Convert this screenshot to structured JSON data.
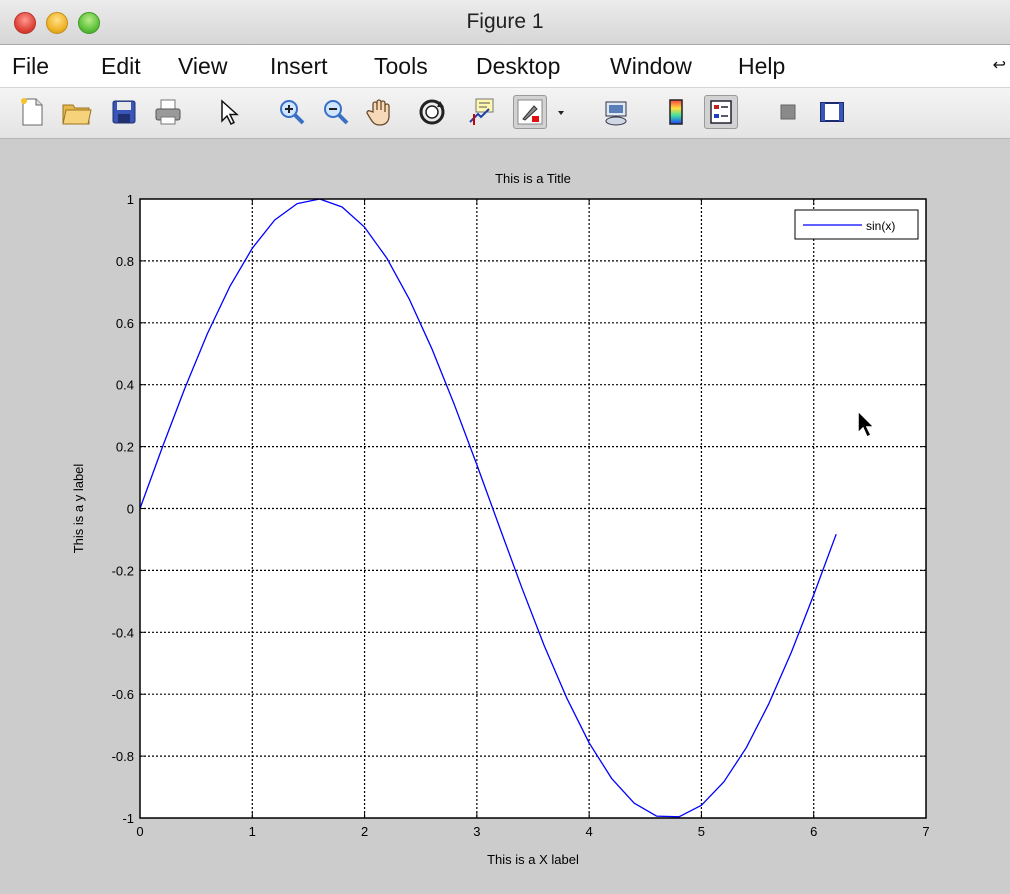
{
  "window": {
    "title": "Figure 1"
  },
  "menu": {
    "items": [
      "File",
      "Edit",
      "View",
      "Insert",
      "Tools",
      "Desktop",
      "Window",
      "Help"
    ],
    "overflow_arrow": "↩"
  },
  "toolbar": {
    "buttons": [
      "new-figure-icon",
      "open-file-icon",
      "save-icon",
      "print-icon",
      "edit-plot-pointer-icon",
      "zoom-in-icon",
      "zoom-out-icon",
      "pan-hand-icon",
      "rotate-3d-icon",
      "data-cursor-icon",
      "brush-icon",
      "brush-dropdown-icon",
      "link-plot-icon",
      "insert-colorbar-icon",
      "insert-legend-icon",
      "hide-plot-tools-icon",
      "show-plot-tools-icon"
    ]
  },
  "chart_data": {
    "type": "line",
    "title": "This is a Title",
    "xlabel": "This is a X label",
    "ylabel": "This is a y label",
    "xlim": [
      0,
      7
    ],
    "ylim": [
      -1,
      1
    ],
    "xticks": [
      "0",
      "1",
      "2",
      "3",
      "4",
      "5",
      "6",
      "7"
    ],
    "yticks": [
      "-1",
      "-0.8",
      "-0.6",
      "-0.4",
      "-0.2",
      "0",
      "0.2",
      "0.4",
      "0.6",
      "0.8",
      "1"
    ],
    "grid": true,
    "legend": {
      "position": "top-right",
      "entries": [
        "sin(x)"
      ]
    },
    "series": [
      {
        "name": "sin(x)",
        "color": "#0000ff",
        "x": [
          0,
          0.2,
          0.4,
          0.6,
          0.8,
          1.0,
          1.2,
          1.4,
          1.6,
          1.8,
          2.0,
          2.2,
          2.4,
          2.6,
          2.8,
          3.0,
          3.2,
          3.4,
          3.6,
          3.8,
          4.0,
          4.2,
          4.4,
          4.6,
          4.8,
          5.0,
          5.2,
          5.4,
          5.6,
          5.8,
          6.0,
          6.2
        ],
        "y": [
          0,
          0.199,
          0.389,
          0.565,
          0.717,
          0.841,
          0.932,
          0.985,
          1.0,
          0.974,
          0.909,
          0.808,
          0.675,
          0.516,
          0.335,
          0.141,
          -0.058,
          -0.256,
          -0.443,
          -0.612,
          -0.757,
          -0.872,
          -0.952,
          -0.994,
          -0.996,
          -0.959,
          -0.883,
          -0.773,
          -0.631,
          -0.465,
          -0.279,
          -0.083
        ]
      }
    ]
  }
}
